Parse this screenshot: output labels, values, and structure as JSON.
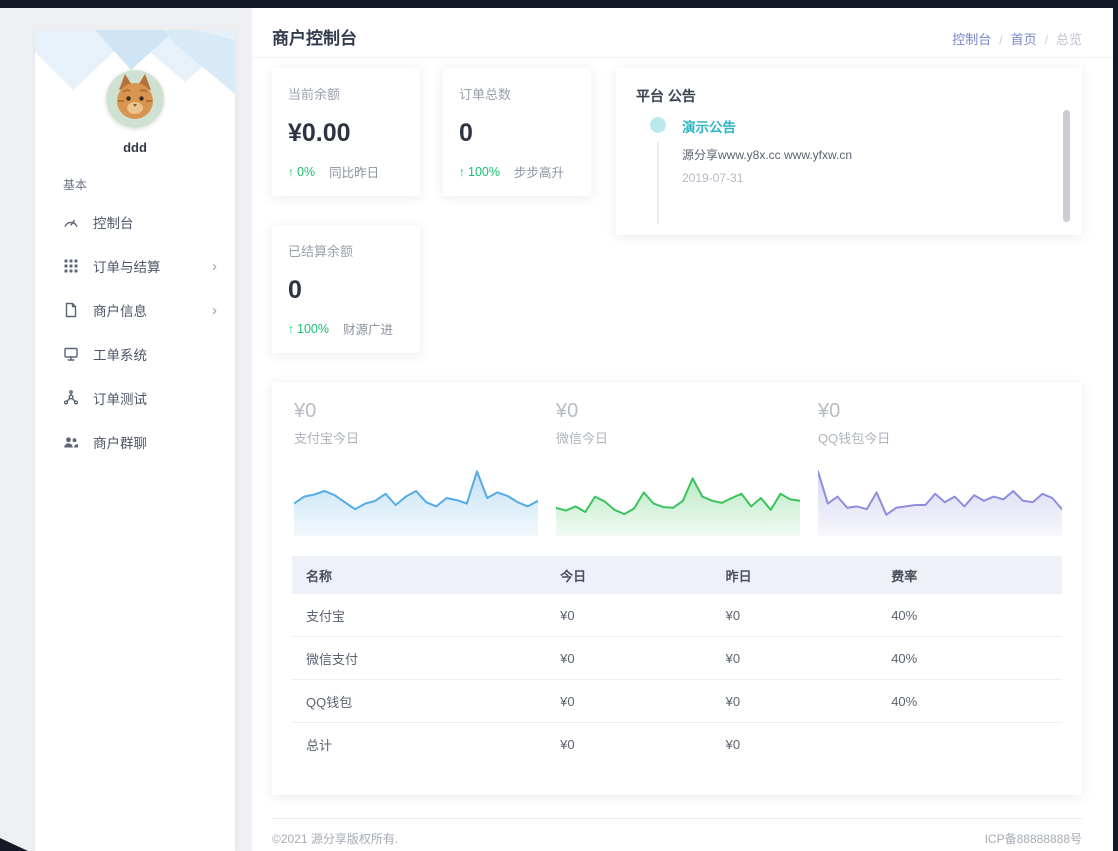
{
  "page": {
    "title": "商户控制台"
  },
  "breadcrumb": {
    "separator": "/",
    "items": [
      {
        "label": "控制台"
      },
      {
        "label": "首页"
      },
      {
        "label": "总览"
      }
    ]
  },
  "sidebar": {
    "username": "ddd",
    "section_label": "基本",
    "items": [
      {
        "label": "控制台",
        "icon": "gauge-icon",
        "has_children": false
      },
      {
        "label": "订单与结算",
        "icon": "grid-icon",
        "has_children": true
      },
      {
        "label": "商户信息",
        "icon": "file-icon",
        "has_children": true
      },
      {
        "label": "工单系统",
        "icon": "monitor-icon",
        "has_children": false
      },
      {
        "label": "订单测试",
        "icon": "network-icon",
        "has_children": false
      },
      {
        "label": "商户群聊",
        "icon": "users-icon",
        "has_children": false
      }
    ]
  },
  "stats": [
    {
      "title": "当前余额",
      "value": "¥0.00",
      "delta": "0%",
      "delta_note": "同比昨日"
    },
    {
      "title": "订单总数",
      "value": "0",
      "delta": "100%",
      "delta_note": "步步高升"
    },
    {
      "title": "已结算余额",
      "value": "0",
      "delta": "100%",
      "delta_note": "财源广进"
    }
  ],
  "announcement": {
    "title": "平台 公告",
    "items": [
      {
        "title": "演示公告",
        "content": "源分享www.y8x.cc www.yfxw.cn",
        "date": "2019-07-31"
      }
    ]
  },
  "chart_data": [
    {
      "type": "area",
      "title": "支付宝今日",
      "amount_label": "¥0",
      "color": "#55abe3",
      "note": "sparkline, no axes; values normalized 0-100",
      "values": [
        42,
        52,
        55,
        60,
        54,
        44,
        34,
        42,
        46,
        56,
        40,
        52,
        60,
        44,
        38,
        50,
        47,
        42,
        88,
        50,
        58,
        53,
        44,
        38,
        46
      ]
    },
    {
      "type": "area",
      "title": "微信今日",
      "amount_label": "¥0",
      "color": "#3bc45c",
      "note": "sparkline, no axes; values normalized 0-100",
      "values": [
        36,
        32,
        38,
        30,
        52,
        45,
        33,
        27,
        35,
        58,
        42,
        37,
        36,
        46,
        78,
        52,
        46,
        43,
        50,
        56,
        38,
        50,
        33,
        56,
        48,
        46
      ]
    },
    {
      "type": "area",
      "title": "QQ钱包今日",
      "amount_label": "¥0",
      "color": "#8d8ede",
      "note": "sparkline, no axes; values normalized 0-100",
      "values": [
        88,
        42,
        52,
        36,
        38,
        34,
        58,
        26,
        36,
        38,
        40,
        40,
        56,
        44,
        52,
        38,
        54,
        46,
        52,
        48,
        60,
        46,
        44,
        56,
        50,
        34
      ]
    }
  ],
  "table": {
    "headers": [
      "名称",
      "今日",
      "昨日",
      "费率"
    ],
    "rows": [
      [
        "支付宝",
        "¥0",
        "¥0",
        "40%"
      ],
      [
        "微信支付",
        "¥0",
        "¥0",
        "40%"
      ],
      [
        "QQ钱包",
        "¥0",
        "¥0",
        "40%"
      ],
      [
        "总计",
        "¥0",
        "¥0",
        ""
      ]
    ]
  },
  "footer": {
    "copyright": "©2021 源分享版权所有.",
    "icp": "ICP备88888888号"
  },
  "colors": {
    "accent_green": "#19be6b",
    "accent_teal": "#2cb6c3",
    "breadcrumb_link": "#7986cb",
    "chart_blue": "#55abe3",
    "chart_green": "#3bc45c",
    "chart_purple": "#8d8ede",
    "frame_dark": "#141925",
    "table_header_bg": "#eef1f7"
  }
}
